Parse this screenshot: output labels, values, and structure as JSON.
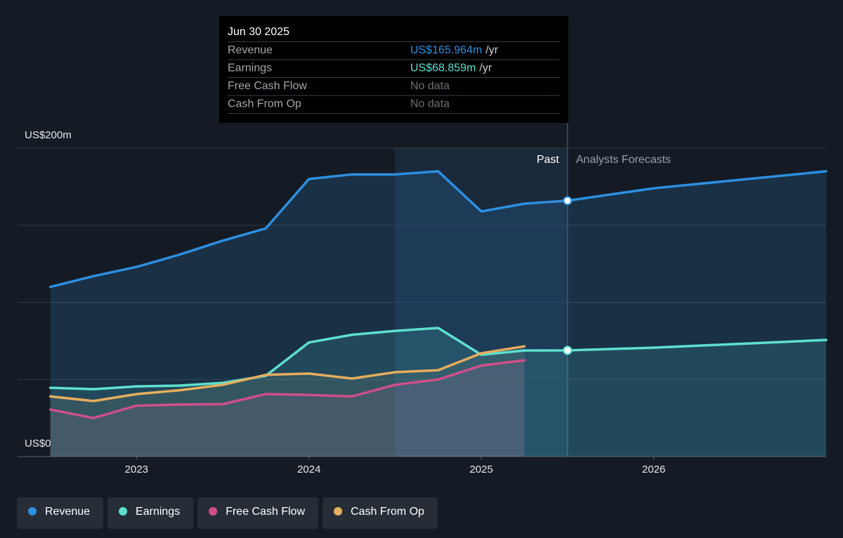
{
  "chart_data": {
    "type": "line",
    "x": [
      2022.5,
      2022.75,
      2023,
      2023.25,
      2023.5,
      2023.75,
      2024,
      2024.25,
      2024.5,
      2024.75,
      2025,
      2025.25,
      2025.5,
      2026,
      2027
    ],
    "series": [
      {
        "name": "Revenue",
        "color": "#2d8fe0",
        "values": [
          110,
          117,
          123,
          131,
          140,
          148,
          180,
          183,
          183,
          185,
          159,
          164,
          165.964,
          174,
          185
        ]
      },
      {
        "name": "Earnings",
        "color": "#5ee0cf",
        "values": [
          44.6,
          43.7,
          45.5,
          46,
          47.8,
          52.4,
          74,
          79,
          81.5,
          83.4,
          66,
          68.8,
          68.859,
          70.6,
          75.6
        ]
      },
      {
        "name": "Free Cash Flow",
        "color": "#d04f8a",
        "values": [
          30.5,
          25,
          33,
          33.7,
          34,
          40.5,
          40,
          39,
          46.5,
          50,
          59,
          62.4,
          null,
          null,
          null
        ]
      },
      {
        "name": "Cash From Op",
        "color": "#e6ae5e",
        "values": [
          39,
          36,
          40.5,
          43,
          46.5,
          53,
          53.8,
          50.6,
          54.7,
          56,
          67,
          71.5,
          null,
          null,
          null
        ]
      }
    ],
    "xlim": [
      2022.31,
      2027
    ],
    "xticks": [
      2023,
      2024,
      2025,
      2026
    ],
    "ylim": [
      0,
      200
    ],
    "yticks": [
      {
        "value": 0,
        "label": "US$0"
      },
      {
        "value": 200,
        "label": "US$200m"
      }
    ],
    "ygrid": [
      0,
      50,
      100,
      150,
      200
    ],
    "grid": true,
    "divider_x": 2025.5,
    "highlight": [
      2024.5,
      2025.5
    ],
    "past_label": "Past",
    "forecast_label": "Analysts Forecasts",
    "legend": "bottom-left",
    "tooltip": {
      "date": "Jun 30 2025",
      "rows": [
        {
          "label": "Revenue",
          "value": "US$165.964m",
          "unit": "/yr"
        },
        {
          "label": "Earnings",
          "value": "US$68.859m",
          "unit": "/yr"
        },
        {
          "label": "Free Cash Flow",
          "value": "No data"
        },
        {
          "label": "Cash From Op",
          "value": "No data"
        }
      ]
    }
  }
}
